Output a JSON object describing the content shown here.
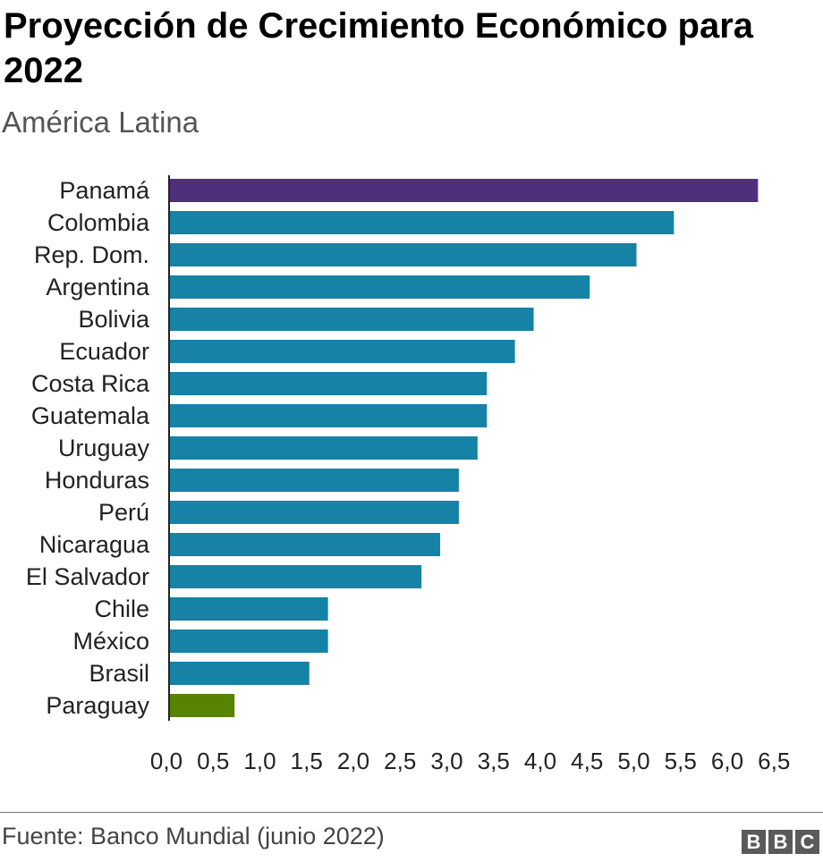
{
  "header": {
    "title": "Proyección de Crecimiento Económico para 2022",
    "subtitle": "América Latina"
  },
  "footer": {
    "source": "Fuente: Banco Mundial (junio 2022)",
    "logo": [
      "B",
      "B",
      "C"
    ]
  },
  "colors": {
    "default_bar": "#1682a5",
    "highlight_top": "#4e2f7c",
    "highlight_bottom": "#588300",
    "axis": "#222222"
  },
  "chart_data": {
    "type": "bar",
    "orientation": "horizontal",
    "categories": [
      "Panamá",
      "Colombia",
      "Rep. Dom.",
      "Argentina",
      "Bolivia",
      "Ecuador",
      "Costa Rica",
      "Guatemala",
      "Uruguay",
      "Honduras",
      "Perú",
      "Nicaragua",
      "El Salvador",
      "Chile",
      "México",
      "Brasil",
      "Paraguay"
    ],
    "values": [
      6.3,
      5.4,
      5.0,
      4.5,
      3.9,
      3.7,
      3.4,
      3.4,
      3.3,
      3.1,
      3.1,
      2.9,
      2.7,
      1.7,
      1.7,
      1.5,
      0.7
    ],
    "xlim": [
      0,
      6.5
    ],
    "xticks": [
      "0,0",
      "0,5",
      "1,0",
      "1,5",
      "2,0",
      "2,5",
      "3,0",
      "3,5",
      "4,0",
      "4,5",
      "5,0",
      "5,5",
      "6,0",
      "6,5"
    ],
    "xtick_values": [
      0,
      0.5,
      1,
      1.5,
      2,
      2.5,
      3,
      3.5,
      4,
      4.5,
      5,
      5.5,
      6,
      6.5
    ],
    "highlight": {
      "Panamá": "highlight_top",
      "Paraguay": "highlight_bottom"
    },
    "grid": false,
    "legend": "none"
  }
}
